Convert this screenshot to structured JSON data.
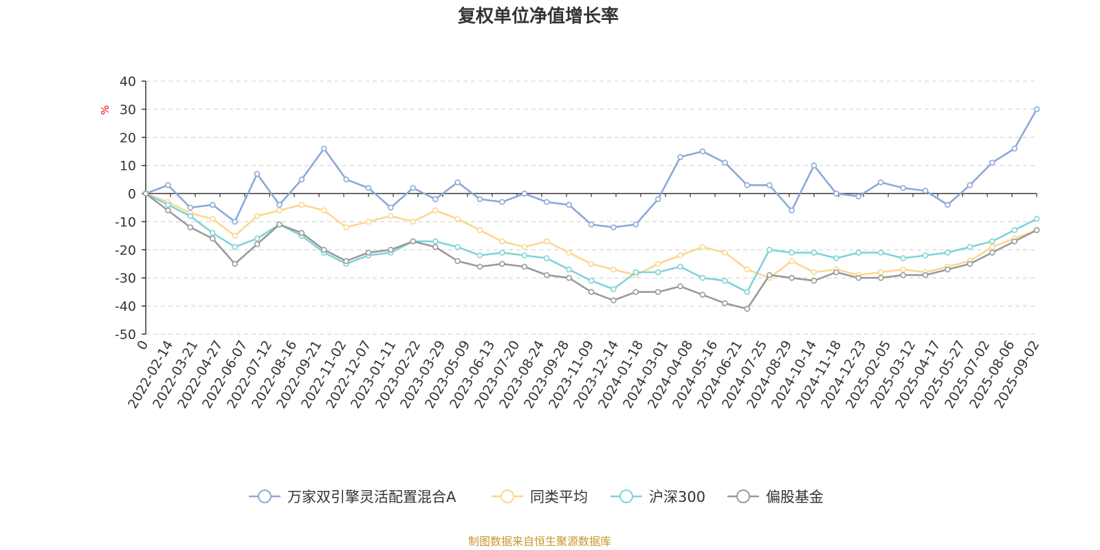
{
  "chart_data": {
    "type": "line",
    "title": "复权单位净值增长率",
    "y_unit": "%",
    "ylim": [
      -50,
      40
    ],
    "y_ticks": [
      40,
      30,
      20,
      10,
      0,
      -10,
      -20,
      -30,
      -40,
      -50
    ],
    "grid": "horizontal-dashed",
    "legend_position": "bottom-center",
    "x_labels": [
      "0",
      "2022-02-14",
      "2022-03-21",
      "2022-04-27",
      "2022-06-07",
      "2022-07-12",
      "2022-08-16",
      "2022-09-21",
      "2022-11-02",
      "2022-12-07",
      "2023-01-11",
      "2023-02-22",
      "2023-03-29",
      "2023-05-09",
      "2023-06-13",
      "2023-07-20",
      "2023-08-24",
      "2023-09-28",
      "2023-11-09",
      "2023-12-14",
      "2024-01-18",
      "2024-03-01",
      "2024-04-08",
      "2024-05-16",
      "2024-06-21",
      "2024-07-25",
      "2024-08-29",
      "2024-10-14",
      "2024-11-18",
      "2024-12-23",
      "2025-02-05",
      "2025-03-12",
      "2025-04-17",
      "2025-05-27",
      "2025-07-02",
      "2025-08-06",
      "2025-09-02"
    ],
    "series": [
      {
        "name": "万家双引擎灵活配置混合A",
        "color": "#8aa8d8",
        "values": [
          0,
          3,
          -5,
          -4,
          -10,
          7,
          -4,
          5,
          16,
          5,
          2,
          -5,
          2,
          -2,
          4,
          -2,
          -3,
          0,
          -3,
          -4,
          -11,
          -12,
          -11,
          -2,
          13,
          15,
          11,
          3,
          3,
          -6,
          10,
          0,
          -1,
          4,
          2,
          1,
          -4,
          3,
          11,
          16,
          30
        ]
      },
      {
        "name": "同类平均",
        "color": "#fcd68e",
        "values": [
          0,
          -3,
          -7,
          -9,
          -15,
          -8,
          -6,
          -4,
          -6,
          -12,
          -10,
          -8,
          -10,
          -6,
          -9,
          -13,
          -17,
          -19,
          -17,
          -21,
          -25,
          -27,
          -29,
          -25,
          -22,
          -19,
          -21,
          -27,
          -30,
          -24,
          -28,
          -27,
          -29,
          -28,
          -27,
          -28,
          -26,
          -24,
          -19,
          -16,
          -13
        ]
      },
      {
        "name": "沪深300",
        "color": "#7dd3d8",
        "values": [
          0,
          -4,
          -8,
          -14,
          -19,
          -16,
          -11,
          -15,
          -21,
          -25,
          -22,
          -21,
          -17,
          -17,
          -19,
          -22,
          -21,
          -22,
          -23,
          -27,
          -31,
          -34,
          -28,
          -28,
          -26,
          -30,
          -31,
          -35,
          -20,
          -21,
          -21,
          -23,
          -21,
          -21,
          -23,
          -22,
          -21,
          -19,
          -17,
          -13,
          -9
        ]
      },
      {
        "name": "偏股基金",
        "color": "#999999",
        "values": [
          0,
          -6,
          -12,
          -16,
          -25,
          -18,
          -11,
          -14,
          -20,
          -24,
          -21,
          -20,
          -17,
          -19,
          -24,
          -26,
          -25,
          -26,
          -29,
          -30,
          -35,
          -38,
          -35,
          -35,
          -33,
          -36,
          -39,
          -41,
          -29,
          -30,
          -31,
          -28,
          -30,
          -30,
          -29,
          -29,
          -27,
          -25,
          -21,
          -17,
          -13
        ]
      }
    ]
  },
  "source": "制图数据来自恒生聚源数据库",
  "unit_color": "#ff0000",
  "source_color": "#c8962d"
}
